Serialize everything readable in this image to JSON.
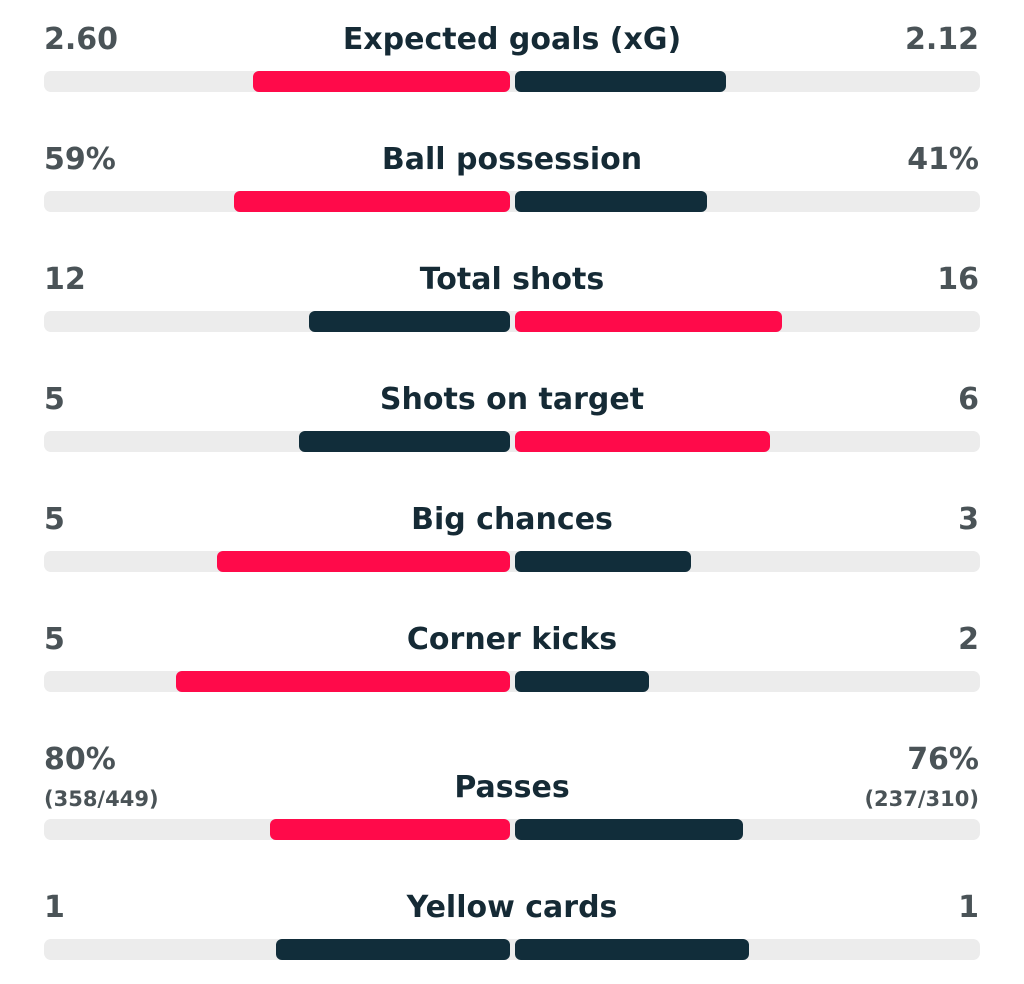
{
  "colors": {
    "highlight": "#ff0a4a",
    "neutral": "#112d3a",
    "track": "#ececec",
    "value_text": "#4a5357",
    "label_text": "#152a35"
  },
  "stats": [
    {
      "label": "Expected goals (xG)",
      "home": "2.60",
      "away": "2.12",
      "home_fill": 0.55,
      "away_fill": 0.45,
      "home_color": "highlight",
      "away_color": "neutral"
    },
    {
      "label": "Ball possession",
      "home": "59%",
      "away": "41%",
      "home_fill": 0.59,
      "away_fill": 0.41,
      "home_color": "highlight",
      "away_color": "neutral"
    },
    {
      "label": "Total shots",
      "home": "12",
      "away": "16",
      "home_fill": 0.43,
      "away_fill": 0.57,
      "home_color": "neutral",
      "away_color": "highlight"
    },
    {
      "label": "Shots on target",
      "home": "5",
      "away": "6",
      "home_fill": 0.45,
      "away_fill": 0.545,
      "home_color": "neutral",
      "away_color": "highlight"
    },
    {
      "label": "Big chances",
      "home": "5",
      "away": "3",
      "home_fill": 0.625,
      "away_fill": 0.375,
      "home_color": "highlight",
      "away_color": "neutral"
    },
    {
      "label": "Corner kicks",
      "home": "5",
      "away": "2",
      "home_fill": 0.714,
      "away_fill": 0.286,
      "home_color": "highlight",
      "away_color": "neutral"
    },
    {
      "label": "Passes",
      "home": "80%",
      "away": "76%",
      "home_sub": "(358/449)",
      "away_sub": "(237/310)",
      "home_fill": 0.513,
      "away_fill": 0.487,
      "home_color": "highlight",
      "away_color": "neutral"
    },
    {
      "label": "Yellow cards",
      "home": "1",
      "away": "1",
      "home_fill": 0.5,
      "away_fill": 0.5,
      "home_color": "neutral",
      "away_color": "neutral"
    }
  ]
}
